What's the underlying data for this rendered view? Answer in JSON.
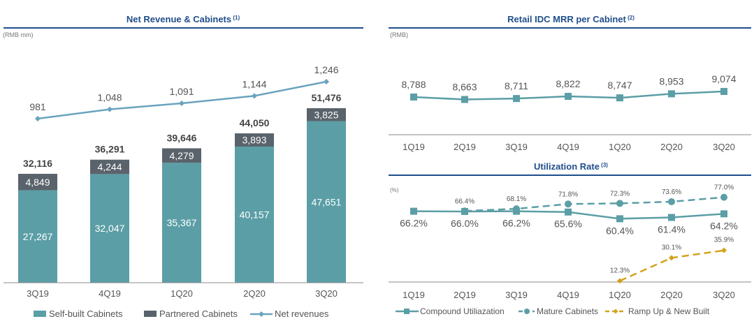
{
  "colors": {
    "teal": "#5b9ea6",
    "dark": "#5a636b",
    "line": "#6aa3be",
    "title": "#1f4e8c",
    "gold": "#d4a21c",
    "text": "#555"
  },
  "chart_data": [
    {
      "type": "bar",
      "title": "Net Revenue & Cabinets",
      "title_note": "(1)",
      "unit": "(RMB mm)",
      "stacked": true,
      "categories": [
        "3Q19",
        "4Q19",
        "1Q20",
        "2Q20",
        "3Q20"
      ],
      "series": [
        {
          "name": "Self-built Cabinets",
          "values": [
            27267,
            32047,
            35367,
            40157,
            47651
          ]
        },
        {
          "name": "Partnered Cabinets",
          "values": [
            4849,
            4244,
            4279,
            3893,
            3825
          ]
        },
        {
          "name": "Net revenues",
          "type": "line",
          "values": [
            981,
            1048,
            1091,
            1144,
            1246
          ]
        }
      ],
      "totals": [
        32116,
        36291,
        39646,
        44050,
        51476
      ],
      "legend": "bottom"
    },
    {
      "type": "line",
      "title": "Retail IDC MRR per Cabinet",
      "title_note": "(2)",
      "unit": "(RMB)",
      "categories": [
        "1Q19",
        "2Q19",
        "3Q19",
        "4Q19",
        "1Q20",
        "2Q20",
        "3Q20"
      ],
      "series": [
        {
          "values": [
            8788,
            8663,
            8711,
            8822,
            8747,
            8953,
            9074
          ]
        }
      ]
    },
    {
      "type": "line",
      "title": "Utilization Rate",
      "title_note": "(3)",
      "unit": "(%)",
      "categories": [
        "1Q19",
        "2Q19",
        "3Q19",
        "4Q19",
        "1Q20",
        "2Q20",
        "3Q20"
      ],
      "series": [
        {
          "name": "Compound Utiliazation",
          "values": [
            66.2,
            66.0,
            66.2,
            65.6,
            60.4,
            61.4,
            64.2
          ]
        },
        {
          "name": "Mature Cabinets",
          "values": [
            null,
            66.4,
            68.1,
            71.8,
            72.3,
            73.6,
            77.0
          ]
        },
        {
          "name": "Ramp Up & New Built",
          "values": [
            null,
            null,
            null,
            null,
            12.3,
            30.1,
            35.9
          ]
        }
      ],
      "legend": "bottom"
    }
  ]
}
